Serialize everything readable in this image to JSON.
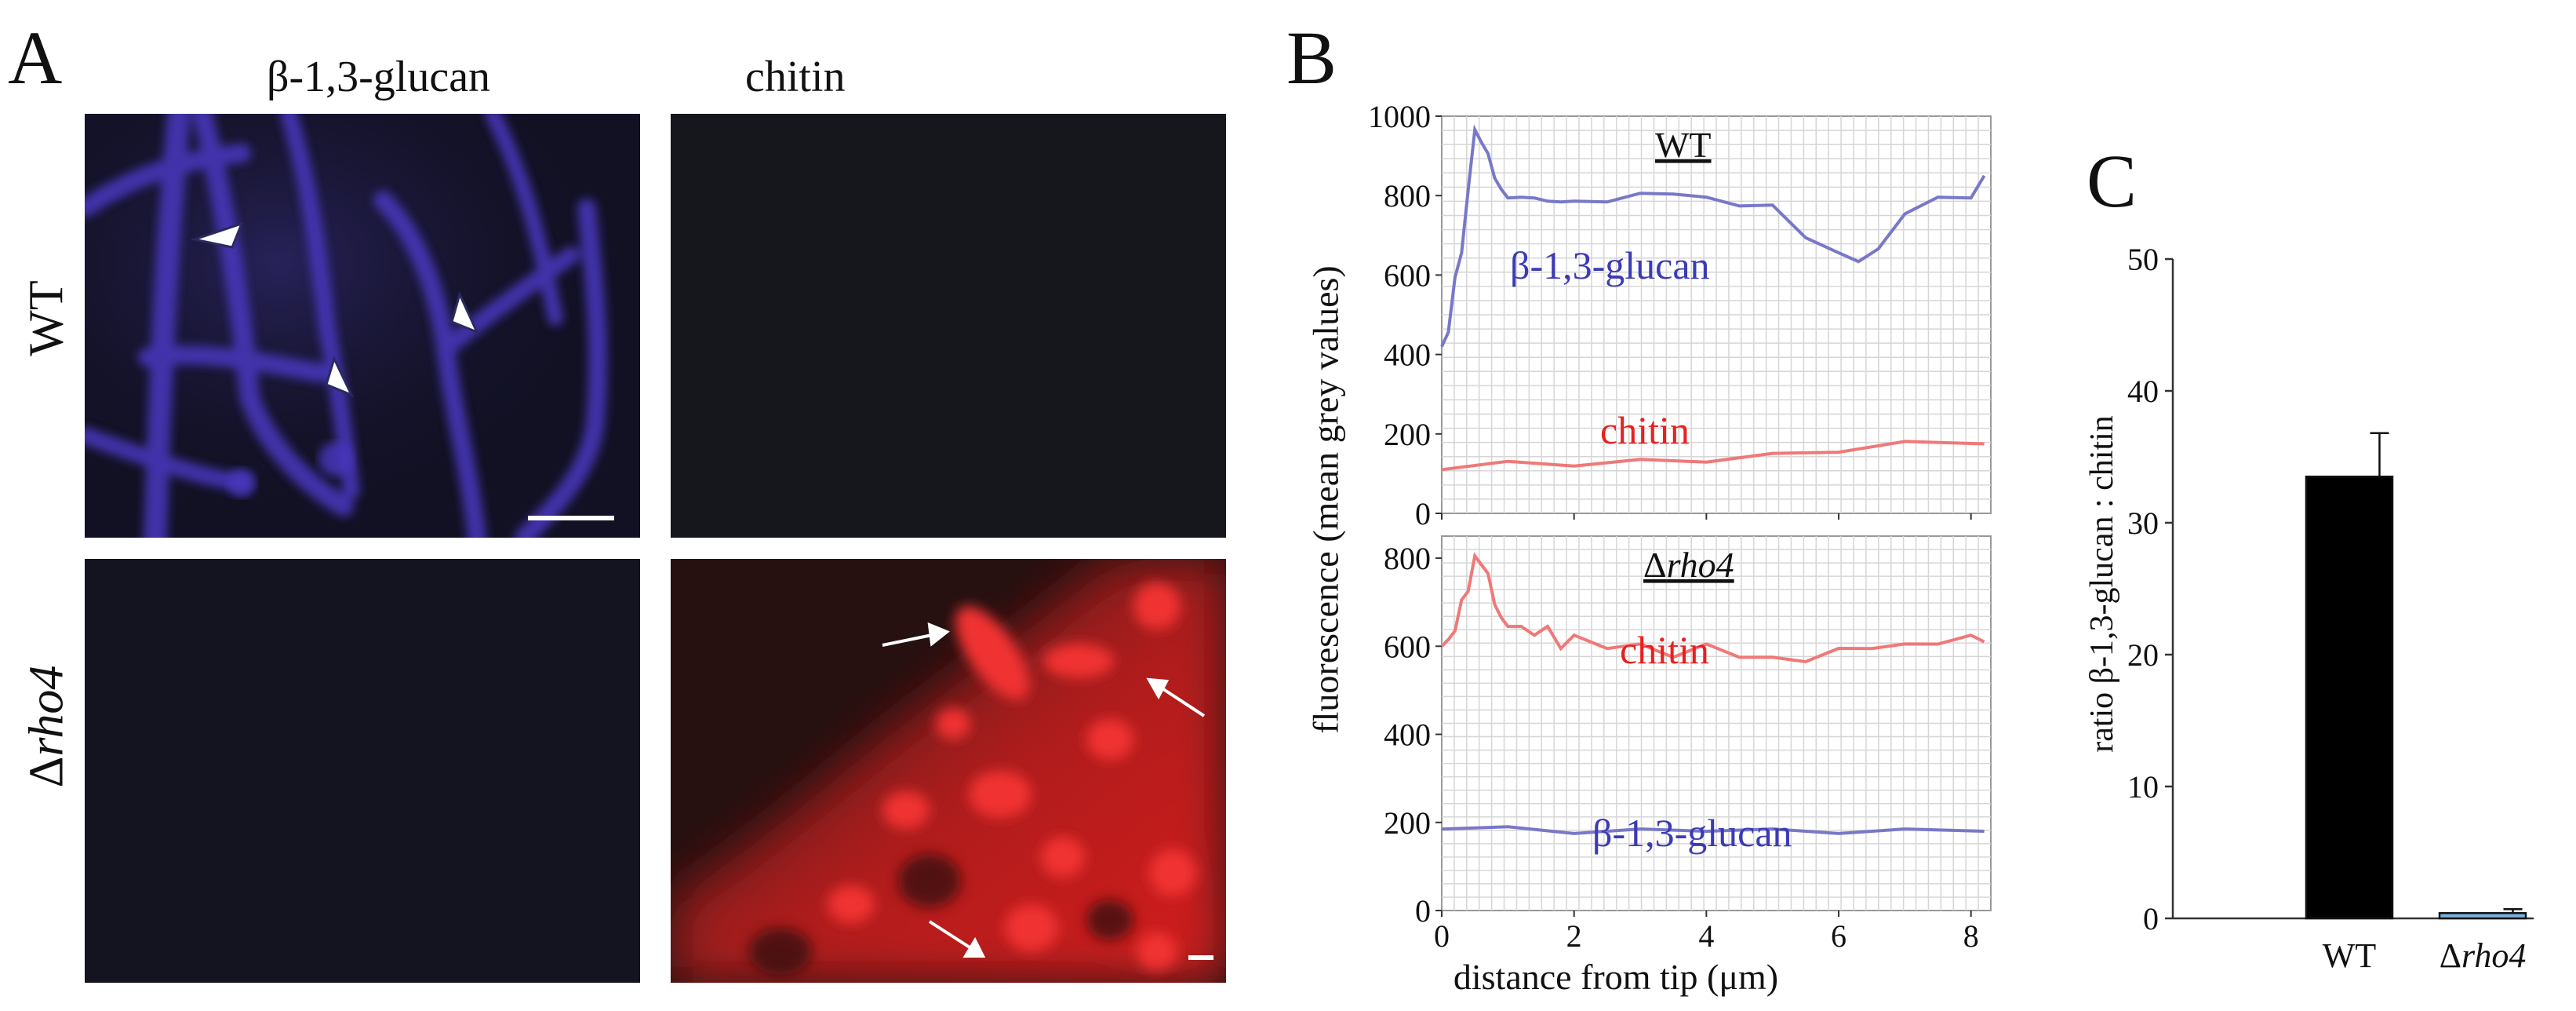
{
  "figure": {
    "panelA": {
      "letter": "A",
      "col_headers": [
        "β-1,3-glucan",
        "chitin"
      ],
      "row_labels": {
        "wt": "WT",
        "mut_prefix": "Δ",
        "mut_italic": "rho4"
      }
    },
    "panelB": {
      "letter": "B",
      "ylabel": "fluorescence (mean grey values)",
      "xlabel": "distance from tip (μm)"
    },
    "panelC": {
      "letter": "C",
      "ylabel": "ratio β-1,3-glucan : chitin"
    }
  },
  "colors": {
    "glucan": "#3b3bb5",
    "chitin": "#e82020",
    "glucan_line": "#7878c8",
    "chitin_line": "#f07878",
    "bar_wt": "#000000",
    "bar_mut": "#7ab0e0"
  },
  "chart_data": [
    {
      "type": "line",
      "subplot": "WT",
      "title_label": "WT",
      "ylim": [
        0,
        1000
      ],
      "yticks": [
        0,
        200,
        400,
        600,
        800,
        1000
      ],
      "xlim": [
        0,
        8.3
      ],
      "xticks": [
        0,
        2,
        4,
        6,
        8
      ],
      "series": [
        {
          "name": "β-1,3-glucan",
          "x": [
            0,
            0.1,
            0.2,
            0.3,
            0.4,
            0.5,
            0.6,
            0.7,
            0.8,
            0.9,
            1.0,
            1.2,
            1.4,
            1.6,
            1.8,
            2.0,
            2.5,
            3.0,
            3.5,
            4.0,
            4.5,
            5.0,
            5.5,
            6.0,
            6.3,
            6.6,
            7.0,
            7.5,
            8.0,
            8.2
          ],
          "y": [
            420,
            450,
            600,
            650,
            820,
            960,
            940,
            900,
            850,
            810,
            800,
            790,
            800,
            780,
            790,
            780,
            790,
            800,
            810,
            790,
            780,
            770,
            700,
            650,
            640,
            660,
            760,
            790,
            800,
            850
          ]
        },
        {
          "name": "chitin",
          "x": [
            0,
            1,
            2,
            3,
            4,
            5,
            6,
            7,
            8.2
          ],
          "y": [
            110,
            125,
            125,
            130,
            135,
            145,
            160,
            175,
            175
          ]
        }
      ]
    },
    {
      "type": "line",
      "subplot": "Δrho4",
      "title_prefix": "Δ",
      "title_italic": "rho4",
      "ylim": [
        0,
        850
      ],
      "yticks": [
        0,
        200,
        400,
        600,
        800
      ],
      "xlim": [
        0,
        8.3
      ],
      "xticks": [
        0,
        2,
        4,
        6,
        8
      ],
      "xtick_labels": [
        "0",
        "2",
        "4",
        "6",
        "8"
      ],
      "series": [
        {
          "name": "chitin",
          "x": [
            0,
            0.1,
            0.2,
            0.3,
            0.4,
            0.5,
            0.6,
            0.7,
            0.8,
            0.9,
            1.0,
            1.2,
            1.4,
            1.6,
            1.8,
            2.0,
            2.5,
            3.0,
            3.5,
            4.0,
            4.5,
            5.0,
            5.5,
            6.0,
            6.5,
            7.0,
            7.5,
            8.0,
            8.2
          ],
          "y": [
            600,
            610,
            640,
            700,
            730,
            800,
            790,
            760,
            700,
            660,
            650,
            640,
            630,
            640,
            600,
            620,
            600,
            600,
            580,
            600,
            580,
            570,
            570,
            590,
            600,
            600,
            610,
            620,
            610
          ]
        },
        {
          "name": "β-1,3-glucan",
          "x": [
            0,
            1,
            2,
            3,
            4,
            5,
            6,
            7,
            8.2
          ],
          "y": [
            185,
            185,
            180,
            180,
            185,
            180,
            180,
            180,
            180
          ]
        }
      ]
    },
    {
      "type": "bar",
      "categories": [
        "WT",
        "Δrho4"
      ],
      "category_labels": [
        {
          "plain": "WT"
        },
        {
          "prefix": "Δ",
          "italic": "rho4"
        }
      ],
      "values": [
        33.5,
        0.4
      ],
      "errors": [
        3.3,
        0.3
      ],
      "ylabel": "ratio β-1,3-glucan : chitin",
      "ylim": [
        0,
        50
      ],
      "yticks": [
        0,
        10,
        20,
        30,
        40,
        50
      ]
    }
  ]
}
